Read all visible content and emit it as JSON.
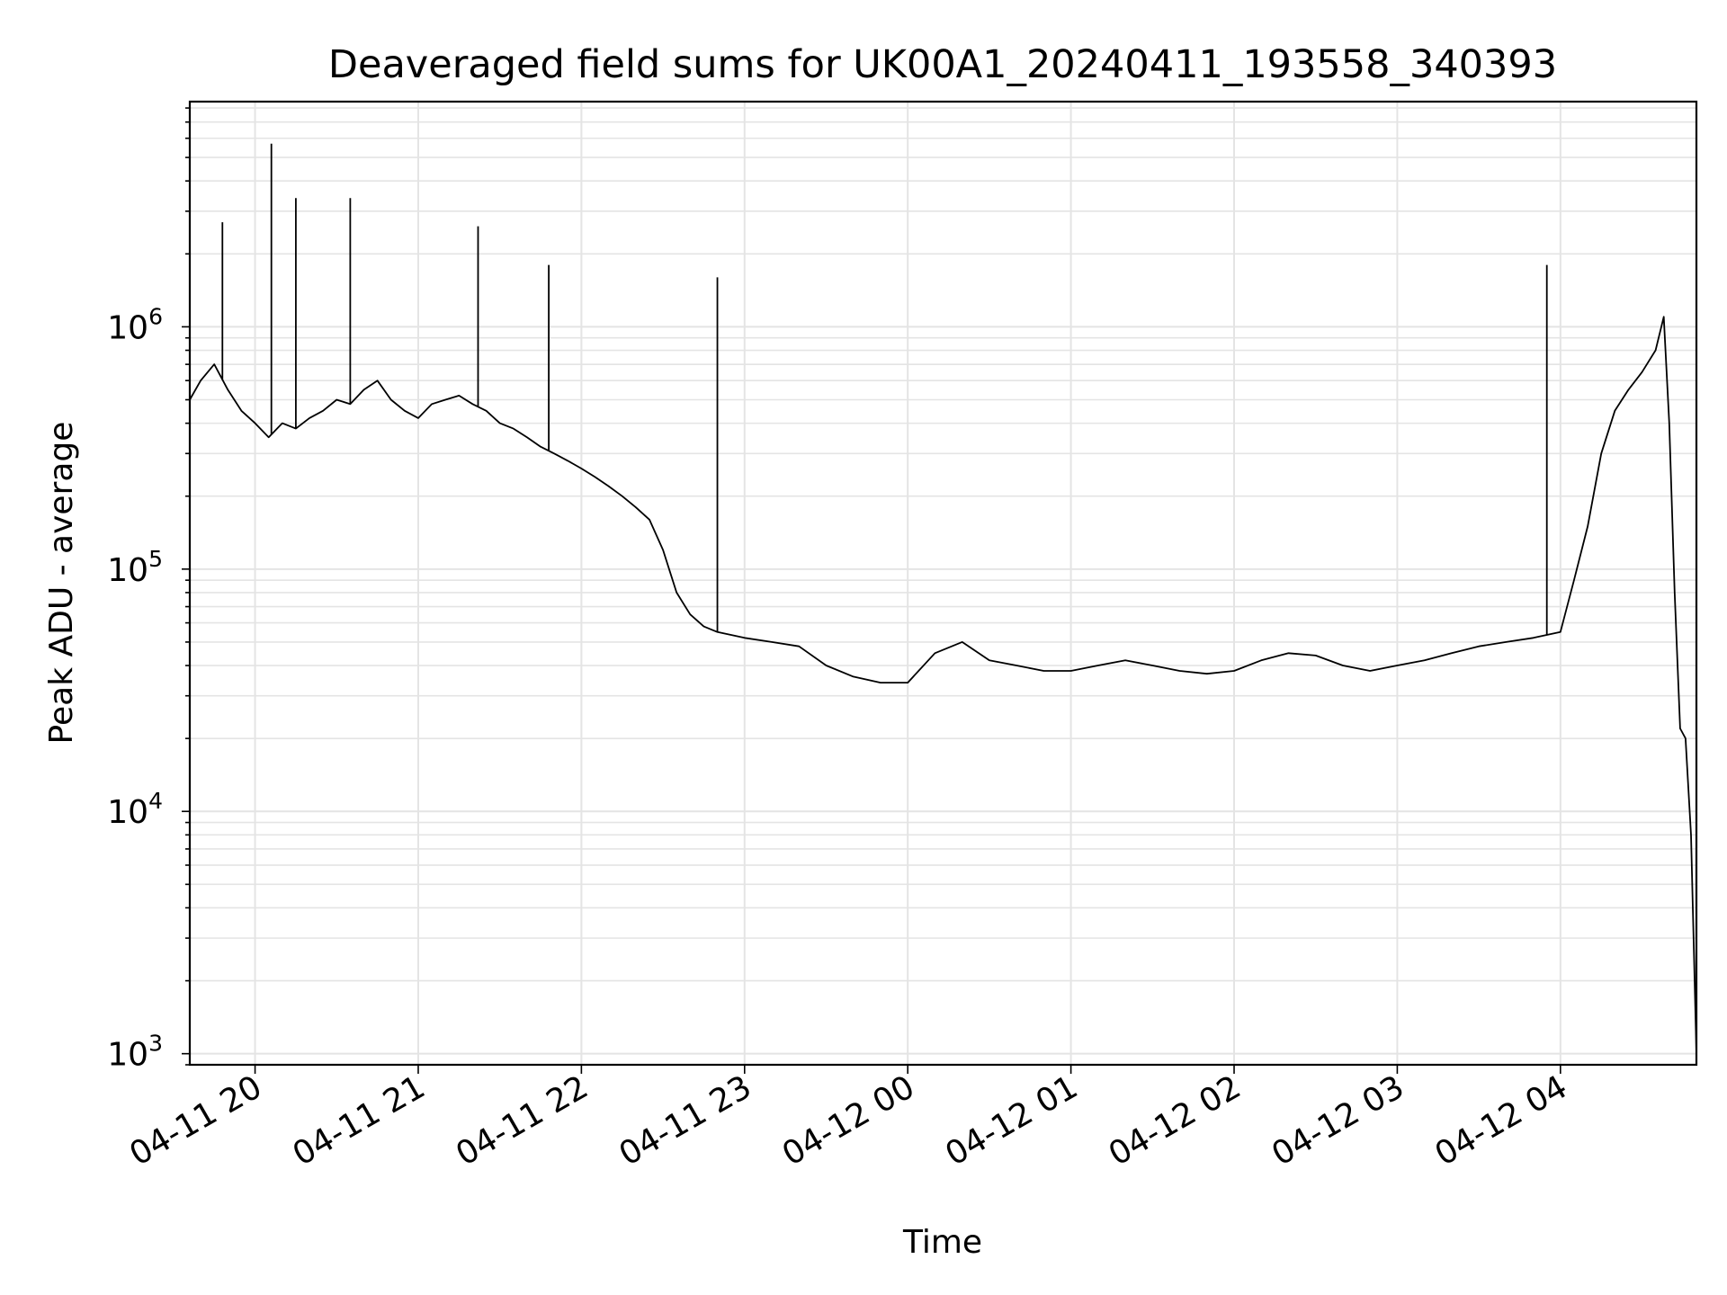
{
  "chart_data": {
    "type": "line",
    "title": "Deaveraged field sums for UK00A1_20240411_193558_340393",
    "xlabel": "Time",
    "ylabel": "Peak ADU - average",
    "yscale": "log",
    "ylim": [
      900,
      8500000
    ],
    "xlim": [
      "2024-04-11 19:36",
      "2024-04-12 04:50"
    ],
    "grid": true,
    "line_color": "#000000",
    "x_ticks": [
      {
        "value": "2024-04-11 20:00",
        "label": "04-11 20"
      },
      {
        "value": "2024-04-11 21:00",
        "label": "04-11 21"
      },
      {
        "value": "2024-04-11 22:00",
        "label": "04-11 22"
      },
      {
        "value": "2024-04-11 23:00",
        "label": "04-11 23"
      },
      {
        "value": "2024-04-12 00:00",
        "label": "04-12 00"
      },
      {
        "value": "2024-04-12 01:00",
        "label": "04-12 01"
      },
      {
        "value": "2024-04-12 02:00",
        "label": "04-12 02"
      },
      {
        "value": "2024-04-12 03:00",
        "label": "04-12 03"
      },
      {
        "value": "2024-04-12 04:00",
        "label": "04-12 04"
      }
    ],
    "y_ticks": [
      {
        "value": 1000,
        "base": "10",
        "exp": "3"
      },
      {
        "value": 10000,
        "base": "10",
        "exp": "4"
      },
      {
        "value": 100000,
        "base": "10",
        "exp": "5"
      },
      {
        "value": 1000000,
        "base": "10",
        "exp": "6"
      }
    ],
    "series": [
      {
        "x": [
          "2024-04-11 19:36",
          "2024-04-11 19:40",
          "2024-04-11 19:45",
          "2024-04-11 19:50",
          "2024-04-11 19:55",
          "2024-04-11 20:00",
          "2024-04-11 20:05",
          "2024-04-11 20:10",
          "2024-04-11 20:15",
          "2024-04-11 20:20",
          "2024-04-11 20:25",
          "2024-04-11 20:30",
          "2024-04-11 20:35",
          "2024-04-11 20:40",
          "2024-04-11 20:45",
          "2024-04-11 20:50",
          "2024-04-11 20:55",
          "2024-04-11 21:00",
          "2024-04-11 21:05",
          "2024-04-11 21:10",
          "2024-04-11 21:15",
          "2024-04-11 21:20",
          "2024-04-11 21:25",
          "2024-04-11 21:30",
          "2024-04-11 21:35",
          "2024-04-11 21:40",
          "2024-04-11 21:45",
          "2024-04-11 21:50",
          "2024-04-11 21:55",
          "2024-04-11 22:00",
          "2024-04-11 22:05",
          "2024-04-11 22:10",
          "2024-04-11 22:15",
          "2024-04-11 22:20",
          "2024-04-11 22:25",
          "2024-04-11 22:30",
          "2024-04-11 22:35",
          "2024-04-11 22:40",
          "2024-04-11 22:45",
          "2024-04-11 22:50",
          "2024-04-11 23:00",
          "2024-04-11 23:10",
          "2024-04-11 23:20",
          "2024-04-11 23:30",
          "2024-04-11 23:40",
          "2024-04-11 23:50",
          "2024-04-12 00:00",
          "2024-04-12 00:10",
          "2024-04-12 00:20",
          "2024-04-12 00:30",
          "2024-04-12 00:40",
          "2024-04-12 00:50",
          "2024-04-12 01:00",
          "2024-04-12 01:10",
          "2024-04-12 01:20",
          "2024-04-12 01:30",
          "2024-04-12 01:40",
          "2024-04-12 01:50",
          "2024-04-12 02:00",
          "2024-04-12 02:10",
          "2024-04-12 02:20",
          "2024-04-12 02:30",
          "2024-04-12 02:40",
          "2024-04-12 02:50",
          "2024-04-12 03:00",
          "2024-04-12 03:10",
          "2024-04-12 03:20",
          "2024-04-12 03:30",
          "2024-04-12 03:40",
          "2024-04-12 03:50",
          "2024-04-12 04:00",
          "2024-04-12 04:05",
          "2024-04-12 04:10",
          "2024-04-12 04:15",
          "2024-04-12 04:20",
          "2024-04-12 04:25",
          "2024-04-12 04:30",
          "2024-04-12 04:35",
          "2024-04-12 04:38",
          "2024-04-12 04:40",
          "2024-04-12 04:42",
          "2024-04-12 04:44",
          "2024-04-12 04:46",
          "2024-04-12 04:48",
          "2024-04-12 04:50"
        ],
        "y": [
          500000,
          600000,
          700000,
          550000,
          450000,
          400000,
          350000,
          400000,
          380000,
          420000,
          450000,
          500000,
          480000,
          550000,
          600000,
          500000,
          450000,
          420000,
          480000,
          500000,
          520000,
          480000,
          450000,
          400000,
          380000,
          350000,
          320000,
          300000,
          280000,
          260000,
          240000,
          220000,
          200000,
          180000,
          160000,
          120000,
          80000,
          65000,
          58000,
          55000,
          52000,
          50000,
          48000,
          40000,
          36000,
          34000,
          34000,
          45000,
          50000,
          42000,
          40000,
          38000,
          38000,
          40000,
          42000,
          40000,
          38000,
          37000,
          38000,
          42000,
          45000,
          44000,
          40000,
          38000,
          40000,
          42000,
          45000,
          48000,
          50000,
          52000,
          55000,
          90000,
          150000,
          300000,
          450000,
          550000,
          650000,
          800000,
          1100000,
          400000,
          80000,
          22000,
          20000,
          8000,
          1000
        ],
        "spikes": [
          {
            "x": "2024-04-11 19:48",
            "y": 2700000
          },
          {
            "x": "2024-04-11 20:06",
            "y": 5700000
          },
          {
            "x": "2024-04-11 20:15",
            "y": 3400000
          },
          {
            "x": "2024-04-11 20:35",
            "y": 3400000
          },
          {
            "x": "2024-04-11 21:22",
            "y": 2600000
          },
          {
            "x": "2024-04-11 21:48",
            "y": 1800000
          },
          {
            "x": "2024-04-11 22:50",
            "y": 1600000
          },
          {
            "x": "2024-04-12 03:55",
            "y": 1800000
          }
        ]
      }
    ]
  }
}
